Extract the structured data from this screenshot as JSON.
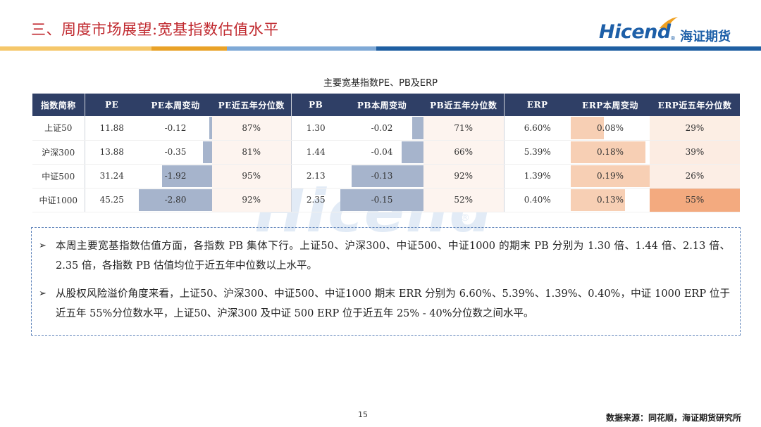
{
  "header": {
    "title": "三、周度市场展望:宽基指数估值水平",
    "logo_text": "Hicend",
    "logo_reg": "®",
    "logo_cn": "海证期货"
  },
  "watermark": {
    "text": "Hicend",
    "reg": "®"
  },
  "table": {
    "caption": "主要宽基指数PE、PB及ERP",
    "columns": [
      "指数简称",
      "PE",
      "PE本周变动",
      "PE近五年分位数",
      "PB",
      "PB本周变动",
      "PB近五年分位数",
      "ERP",
      "ERP本周变动",
      "ERP近五年分位数"
    ],
    "rows": [
      {
        "name": "上证50",
        "pe": "11.88",
        "pe_chg": "-0.12",
        "pe_chg_val": -0.12,
        "pe_pct": "87%",
        "pb": "1.30",
        "pb_chg": "-0.02",
        "pb_chg_val": -0.02,
        "pb_pct": "71%",
        "erp": "6.60%",
        "erp_chg": "0.08%",
        "erp_chg_val": 0.08,
        "erp_pct": "29%",
        "erp_pct_val": 29
      },
      {
        "name": "沪深300",
        "pe": "13.88",
        "pe_chg": "-0.35",
        "pe_chg_val": -0.35,
        "pe_pct": "81%",
        "pb": "1.44",
        "pb_chg": "-0.04",
        "pb_chg_val": -0.04,
        "pb_pct": "66%",
        "erp": "5.39%",
        "erp_chg": "0.18%",
        "erp_chg_val": 0.18,
        "erp_pct": "39%",
        "erp_pct_val": 39
      },
      {
        "name": "中证500",
        "pe": "31.24",
        "pe_chg": "-1.92",
        "pe_chg_val": -1.92,
        "pe_pct": "95%",
        "pb": "2.13",
        "pb_chg": "-0.13",
        "pb_chg_val": -0.13,
        "pb_pct": "92%",
        "erp": "1.39%",
        "erp_chg": "0.19%",
        "erp_chg_val": 0.19,
        "erp_pct": "26%",
        "erp_pct_val": 26
      },
      {
        "name": "中证1000",
        "pe": "45.25",
        "pe_chg": "-2.80",
        "pe_chg_val": -2.8,
        "pe_pct": "92%",
        "pb": "2.35",
        "pb_chg": "-0.15",
        "pb_chg_val": -0.15,
        "pb_pct": "52%",
        "erp": "0.40%",
        "erp_chg": "0.13%",
        "erp_chg_val": 0.13,
        "erp_pct": "55%",
        "erp_pct_val": 55
      }
    ]
  },
  "notes": {
    "bullet_icon": "➢",
    "items": [
      "本周主要宽基指数估值方面，各指数 PB 集体下行。上证50、沪深300、中证500、中证1000 的期末 PB 分别为 1.30 倍、1.44 倍、2.13 倍、2.35 倍，各指数 PB 估值均位于近五年中位数以上水平。",
      "从股权风险溢价角度来看，上证50、沪深300、中证500、中证1000 期末 ERR 分别为 6.60%、5.39%、1.39%、0.40%，中证 1000 ERP 位于近五年 55%分位数水平，上证50、沪深300 及中证 500 ERP 位于近五年 25% - 40%分位数之间水平。"
    ]
  },
  "footer": {
    "page_number": "15",
    "source": "数据来源：同花顺，海证期货研究所"
  },
  "colors": {
    "title_red": "#c0282e",
    "header_navy": "#2f3f66",
    "brand_blue": "#1d5fa8",
    "neg_bar": "#a6b4cc",
    "erp_bar": "#f7cfb4",
    "erp_hot": "#f3aa7f"
  }
}
